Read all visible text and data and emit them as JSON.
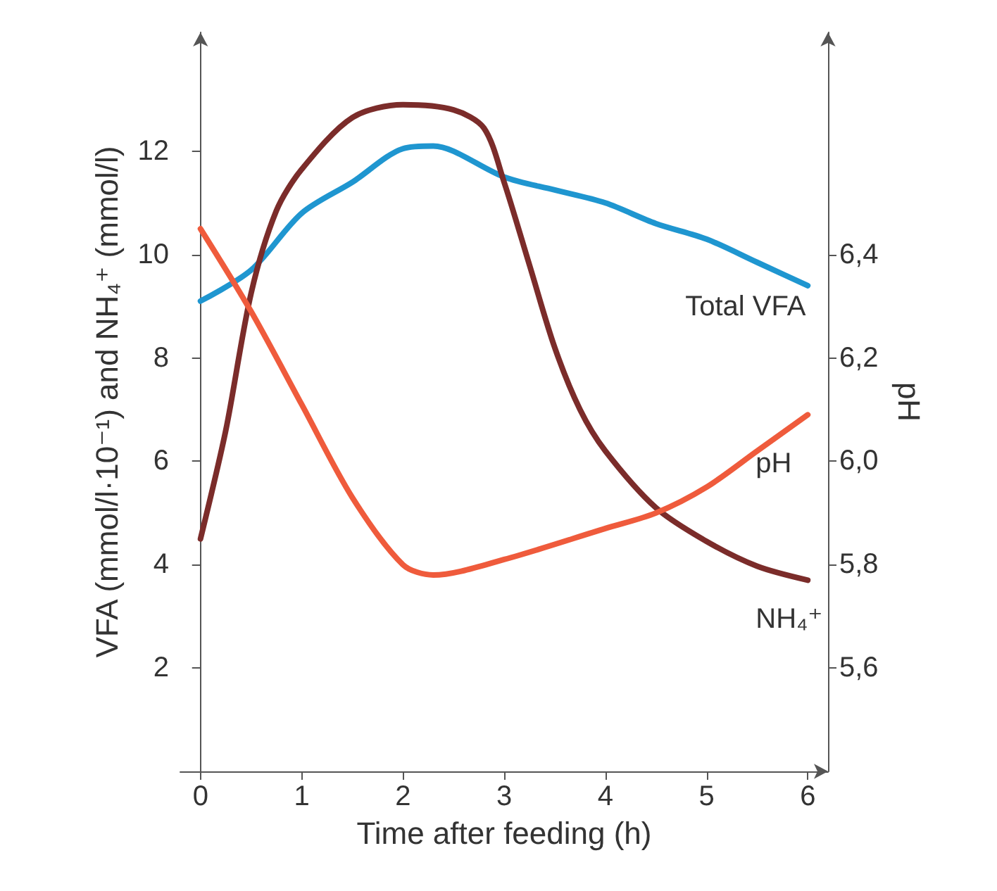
{
  "chart_data": {
    "type": "line",
    "xlabel": "Time after feeding (h)",
    "ylabel": "VFA (mmol/l·10⁻¹) and NH₄⁺ (mmol/l)",
    "y2label": "pH",
    "xlim": [
      -0.2,
      6.2
    ],
    "xticks": [
      0,
      1,
      2,
      3,
      4,
      5,
      6
    ],
    "ylim": [
      0,
      14.3
    ],
    "yticks": [
      2,
      4,
      6,
      8,
      10,
      12
    ],
    "y2lim": [
      5.4,
      6.83
    ],
    "y2ticks": [
      {
        "value": 5.6,
        "label": "5,6"
      },
      {
        "value": 5.8,
        "label": "5,8"
      },
      {
        "value": 6.0,
        "label": "6,0"
      },
      {
        "value": 6.2,
        "label": "6,2"
      },
      {
        "value": 6.4,
        "label": "6,4"
      }
    ],
    "grid": false,
    "legend": false,
    "marker": "none",
    "line_style": "solid",
    "series": [
      {
        "name": "Total VFA",
        "color": "#1f96d0",
        "x": [
          0,
          0.5,
          1,
          1.5,
          2,
          2.3,
          2.5,
          3,
          3.5,
          4,
          4.5,
          5,
          5.5,
          6
        ],
        "values": [
          9.1,
          9.7,
          10.8,
          11.4,
          12.05,
          12.1,
          12.0,
          11.5,
          11.25,
          11.0,
          10.6,
          10.3,
          9.85,
          9.4
        ]
      },
      {
        "name": "NH₄⁺",
        "color": "#7b2c2a",
        "x": [
          0,
          0.25,
          0.5,
          0.75,
          1,
          1.5,
          2,
          2.5,
          2.8,
          3,
          3.25,
          3.5,
          3.75,
          4,
          4.5,
          5,
          5.5,
          6
        ],
        "values": [
          4.5,
          6.6,
          9.25,
          10.85,
          11.65,
          12.65,
          12.9,
          12.8,
          12.45,
          11.4,
          9.8,
          8.2,
          7.0,
          6.2,
          5.1,
          4.45,
          3.97,
          3.7
        ]
      },
      {
        "name": "pH",
        "color": "#ef5b3c",
        "axis": "y2",
        "x": [
          0,
          0.5,
          1,
          1.5,
          2,
          2.3,
          3,
          4,
          4.5,
          5,
          5.5,
          6
        ],
        "values": [
          6.45,
          6.29,
          6.11,
          5.93,
          5.8,
          5.78,
          5.81,
          5.87,
          5.9,
          5.95,
          6.02,
          6.09
        ]
      }
    ]
  }
}
